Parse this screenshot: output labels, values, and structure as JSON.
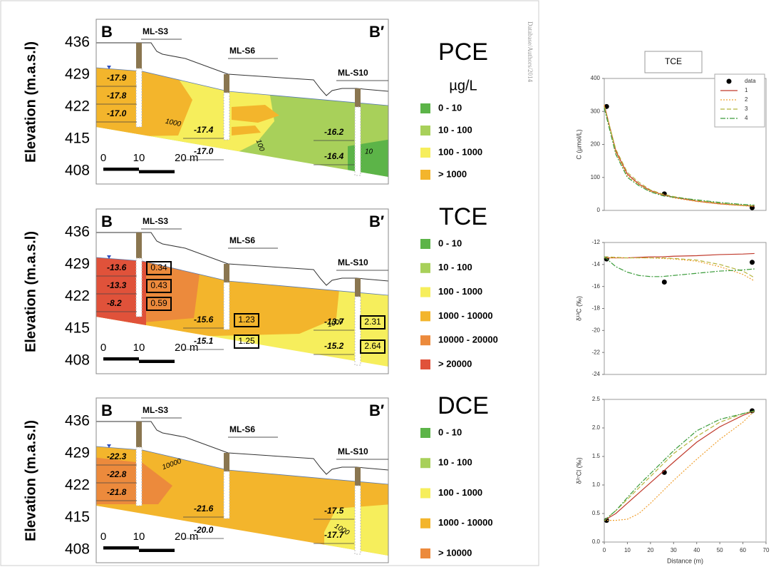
{
  "watermark": "Database/Authors/2014",
  "sections": [
    {
      "title": "PCE",
      "unit": "µg/L",
      "left": "B",
      "right": "B′",
      "wells": [
        "ML-S3",
        "ML-S6",
        "ML-S10"
      ],
      "ylabel": "Elevation (m.a.s.l)",
      "elevations": [
        436,
        429,
        422,
        415,
        408
      ],
      "scale": [
        "0",
        "10",
        "20 m"
      ],
      "legend": [
        {
          "label": "0 - 10",
          "color": "#5cb448"
        },
        {
          "label": "10 - 100",
          "color": "#a8d05a"
        },
        {
          "label": "100 - 1000",
          "color": "#f6ee5c"
        },
        {
          "label": "> 1000",
          "color": "#f3b52c"
        }
      ],
      "isotopes": [
        "-17.9",
        "-17.8",
        "-17.0",
        "-17.4",
        "-17.0",
        "-16.2",
        "-16.4"
      ],
      "contours": [
        "1000",
        "100",
        "10"
      ]
    },
    {
      "title": "TCE",
      "left": "B",
      "right": "B′",
      "wells": [
        "ML-S3",
        "ML-S6",
        "ML-S10"
      ],
      "ylabel": "Elevation (m.a.s.l)",
      "elevations": [
        436,
        429,
        422,
        415,
        408
      ],
      "scale": [
        "0",
        "10",
        "20 m"
      ],
      "legend": [
        {
          "label": "0 - 10",
          "color": "#5cb448"
        },
        {
          "label": "10 - 100",
          "color": "#a8d05a"
        },
        {
          "label": "100 - 1000",
          "color": "#f6ee5c"
        },
        {
          "label": "1000 - 10000",
          "color": "#f3b52c"
        },
        {
          "label": "10000 - 20000",
          "color": "#ec8a3c"
        },
        {
          "label": "> 20000",
          "color": "#e0523a"
        }
      ],
      "isotopes": [
        "-13.6",
        "-13.3",
        "-8.2",
        "-15.6",
        "-15.1",
        "-13.7",
        "-15.2"
      ],
      "ratios": [
        "0.34",
        "0.43",
        "0.59",
        "1.23",
        "1.25",
        "2.31",
        "2.64"
      ],
      "contours": [
        "1000"
      ]
    },
    {
      "title": "DCE",
      "left": "B",
      "right": "B′",
      "wells": [
        "ML-S3",
        "ML-S6",
        "ML-S10"
      ],
      "ylabel": "Elevation (m.a.s.l)",
      "elevations": [
        436,
        429,
        422,
        415,
        408
      ],
      "scale": [
        "0",
        "10",
        "20 m"
      ],
      "legend": [
        {
          "label": "0 - 10",
          "color": "#5cb448"
        },
        {
          "label": "10 - 100",
          "color": "#a8d05a"
        },
        {
          "label": "100 - 1000",
          "color": "#f6ee5c"
        },
        {
          "label": "1000 - 10000",
          "color": "#f3b52c"
        },
        {
          "label": "> 10000",
          "color": "#ec8a3c"
        }
      ],
      "isotopes": [
        "-22.3",
        "-22.8",
        "-21.8",
        "-21.6",
        "-20.0",
        "-17.5",
        "-17.7"
      ],
      "contours": [
        "10000",
        "1000"
      ]
    }
  ],
  "chart_data": [
    {
      "type": "line",
      "title": "TCE",
      "ylabel": "C (µmol/L)",
      "xlim": [
        0,
        70
      ],
      "ylim": [
        0,
        400
      ],
      "yticks": [
        0,
        100,
        200,
        300,
        400
      ],
      "legend": "top-right",
      "x": [
        0,
        5,
        10,
        15,
        20,
        25,
        30,
        40,
        50,
        60,
        65
      ],
      "series": [
        {
          "name": "data",
          "color": "#000000",
          "marker": "circle",
          "x": [
            1,
            26,
            64
          ],
          "values": [
            315,
            50,
            8
          ]
        },
        {
          "name": "1",
          "color": "#c0392b",
          "style": "solid",
          "values": [
            320,
            180,
            110,
            80,
            60,
            48,
            40,
            28,
            20,
            15,
            13
          ]
        },
        {
          "name": "2",
          "color": "#f0a030",
          "style": "dotted",
          "values": [
            320,
            175,
            105,
            78,
            58,
            47,
            38,
            27,
            19,
            14,
            12
          ]
        },
        {
          "name": "3",
          "color": "#b4b43c",
          "style": "dashed",
          "values": [
            315,
            185,
            115,
            85,
            62,
            50,
            42,
            30,
            22,
            16,
            14
          ]
        },
        {
          "name": "4",
          "color": "#3c9c3c",
          "style": "dashdot",
          "values": [
            310,
            170,
            100,
            75,
            56,
            45,
            40,
            32,
            24,
            18,
            16
          ]
        }
      ]
    },
    {
      "type": "line",
      "ylabel": "δ¹³C (‰)",
      "xlim": [
        0,
        70
      ],
      "ylim": [
        -24,
        -12
      ],
      "yticks": [
        -24,
        -22,
        -20,
        -18,
        -16,
        -14,
        -12
      ],
      "x": [
        0,
        5,
        10,
        15,
        20,
        25,
        30,
        40,
        50,
        60,
        65
      ],
      "series": [
        {
          "color": "#000000",
          "marker": "circle",
          "x": [
            1,
            26,
            64
          ],
          "values": [
            -13.5,
            -15.6,
            -13.8
          ]
        },
        {
          "color": "#c0392b",
          "style": "solid",
          "values": [
            -13.4,
            -13.4,
            -13.4,
            -13.35,
            -13.3,
            -13.3,
            -13.25,
            -13.2,
            -13.1,
            -13.05,
            -13.0
          ]
        },
        {
          "color": "#f0a030",
          "style": "dotted",
          "values": [
            -13.4,
            -13.4,
            -13.4,
            -13.4,
            -13.4,
            -13.45,
            -13.5,
            -13.7,
            -14.2,
            -14.9,
            -15.5
          ]
        },
        {
          "color": "#b4b43c",
          "style": "dashed",
          "values": [
            -13.3,
            -13.35,
            -13.4,
            -13.4,
            -13.4,
            -13.4,
            -13.45,
            -13.6,
            -14.0,
            -14.6,
            -15.2
          ]
        },
        {
          "color": "#3c9c3c",
          "style": "dashdot",
          "values": [
            -13.3,
            -14.2,
            -14.7,
            -15.0,
            -15.1,
            -15.1,
            -15.0,
            -14.8,
            -14.6,
            -14.5,
            -14.4
          ]
        }
      ]
    },
    {
      "type": "line",
      "ylabel": "δ³⁷Cl (‰)",
      "xlabel": "Distance (m)",
      "xlim": [
        0,
        70
      ],
      "ylim": [
        0,
        2.5
      ],
      "yticks": [
        {
          "value": 0,
          "label": "0.0"
        },
        0.5,
        {
          "value": 1,
          "label": "1.0"
        },
        1.5,
        {
          "value": 2,
          "label": "2.0"
        },
        2.5
      ],
      "xticks": [
        0,
        10,
        20,
        30,
        40,
        50,
        60,
        70
      ],
      "x": [
        0,
        5,
        10,
        15,
        20,
        25,
        30,
        40,
        50,
        60,
        65
      ],
      "series": [
        {
          "color": "#000000",
          "marker": "circle",
          "x": [
            1,
            26,
            64
          ],
          "values": [
            0.38,
            1.22,
            2.3
          ]
        },
        {
          "color": "#c0392b",
          "style": "solid",
          "values": [
            0.38,
            0.5,
            0.68,
            0.86,
            1.04,
            1.22,
            1.4,
            1.75,
            2.02,
            2.22,
            2.3
          ]
        },
        {
          "color": "#f0a030",
          "style": "dotted",
          "values": [
            0.38,
            0.38,
            0.4,
            0.5,
            0.68,
            0.88,
            1.08,
            1.45,
            1.8,
            2.1,
            2.3
          ]
        },
        {
          "color": "#b4b43c",
          "style": "dashed",
          "values": [
            0.38,
            0.55,
            0.75,
            0.95,
            1.15,
            1.35,
            1.55,
            1.85,
            2.1,
            2.25,
            2.3
          ]
        },
        {
          "color": "#3c9c3c",
          "style": "dashdot",
          "values": [
            0.38,
            0.55,
            0.78,
            1.0,
            1.2,
            1.4,
            1.6,
            1.95,
            2.15,
            2.25,
            2.3
          ]
        }
      ]
    }
  ]
}
